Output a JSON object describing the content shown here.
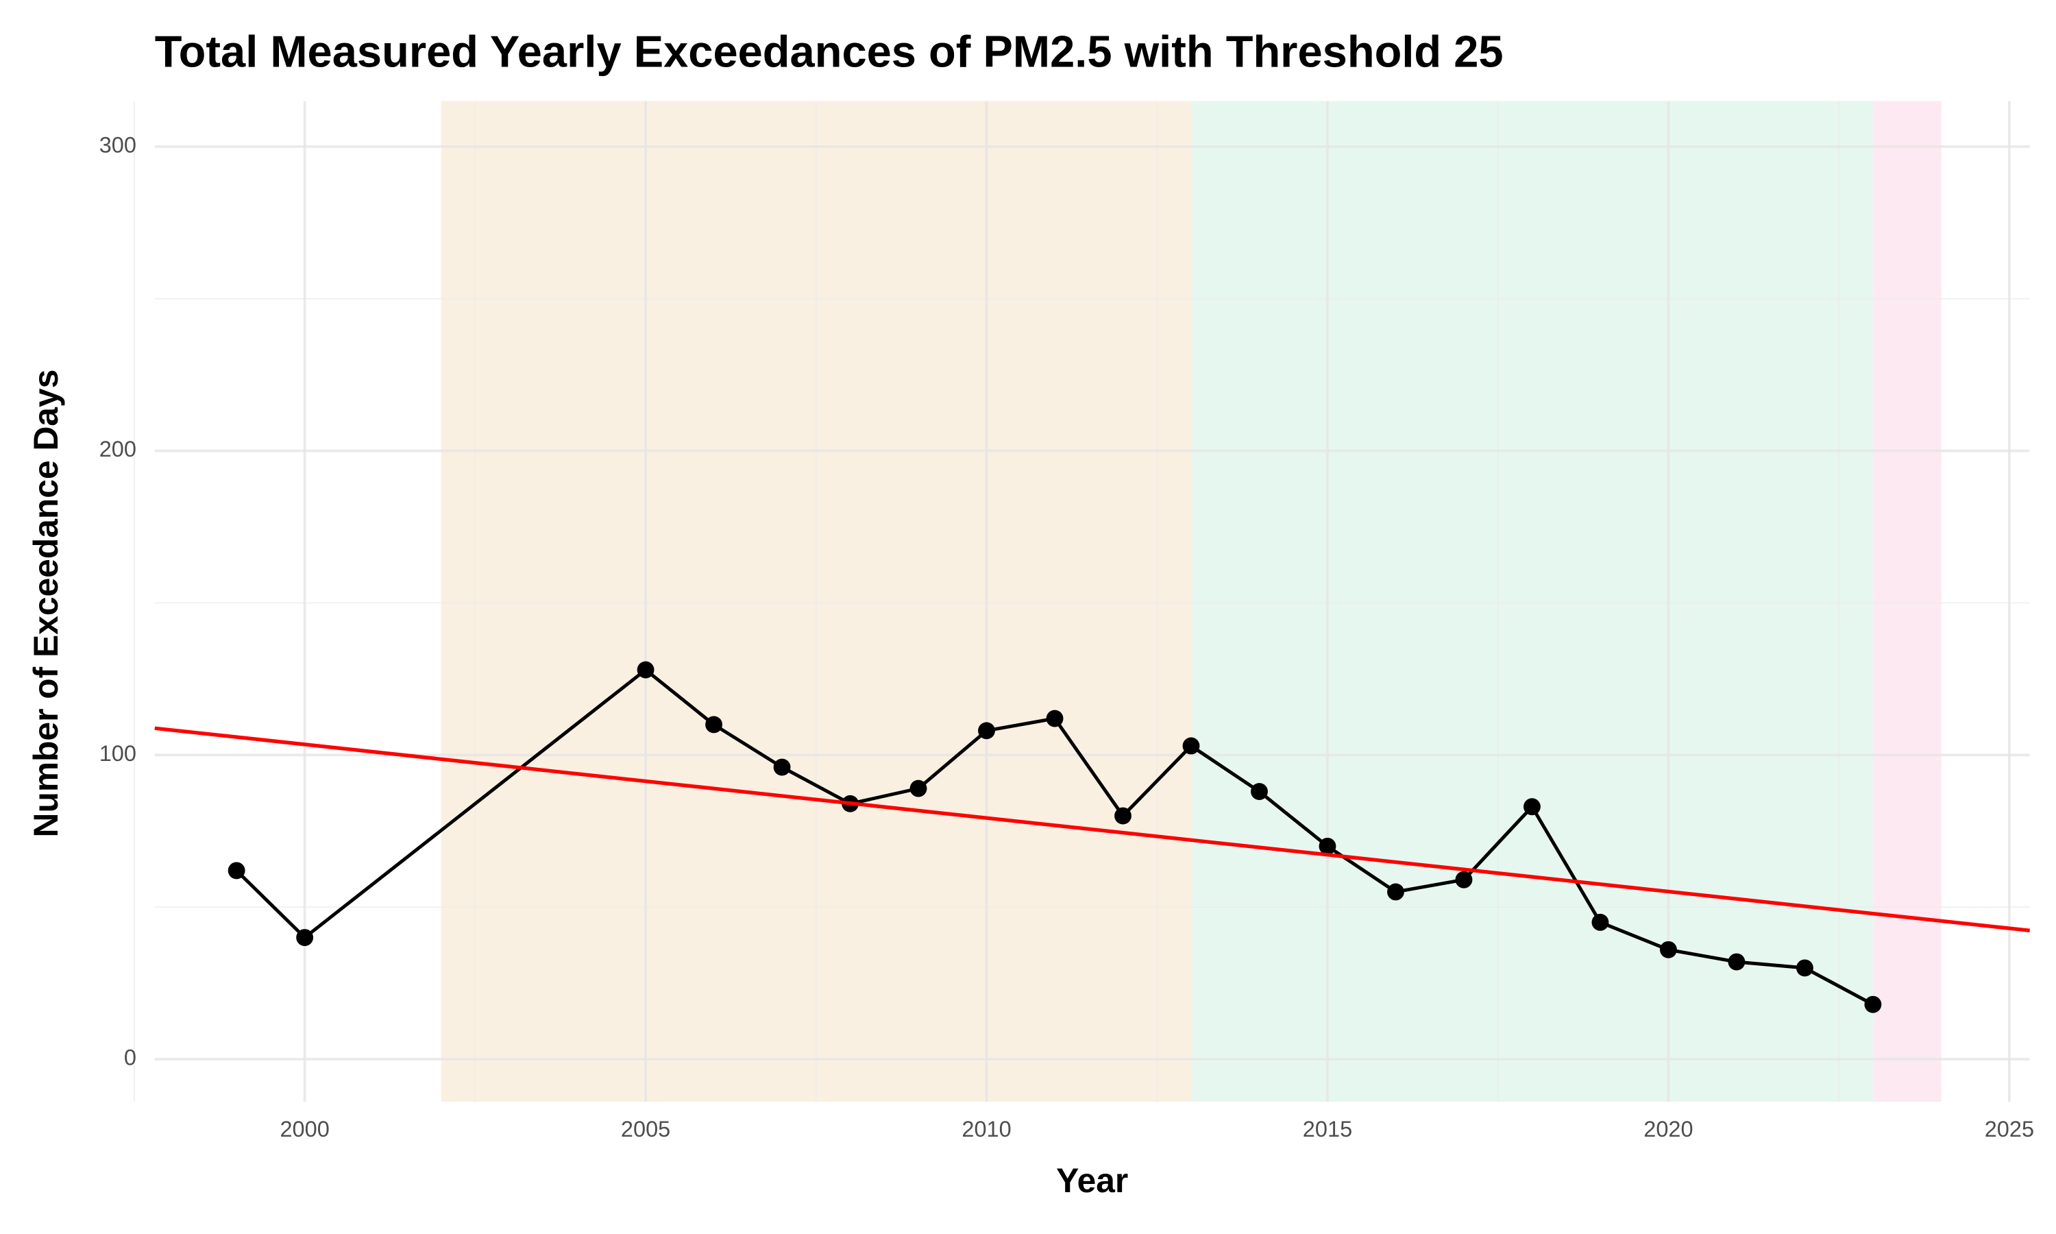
{
  "chart_data": {
    "type": "line",
    "title": "Total Measured Yearly Exceedances of PM2.5 with Threshold 25",
    "x_label": "Year",
    "y_label": "Number of Exceedance Days",
    "x": [
      1999,
      2000,
      2005,
      2006,
      2007,
      2008,
      2009,
      2010,
      2011,
      2012,
      2013,
      2014,
      2015,
      2016,
      2017,
      2018,
      2019,
      2020,
      2021,
      2022,
      2023
    ],
    "series": [
      {
        "color": "#000000",
        "values": [
          62,
          40,
          128,
          110,
          96,
          84,
          89,
          108,
          112,
          80,
          103,
          88,
          70,
          55,
          59,
          83,
          45,
          36,
          32,
          30,
          18
        ]
      }
    ],
    "trend": {
      "color": "#ff0000",
      "x": [
        1997.8,
        2025.3
      ],
      "values": [
        108.8,
        42.3
      ]
    },
    "shaded_regions": [
      {
        "start": 2002,
        "end": 2013,
        "color": "#faf0e1"
      },
      {
        "start": 2013,
        "end": 2023,
        "color": "#e6f7f0"
      },
      {
        "start": 2023,
        "end": 2024,
        "color": "#fde9f1"
      }
    ],
    "xlim": [
      1997.8,
      2025.3
    ],
    "ylim": [
      -14,
      315
    ],
    "xticks": [
      2000,
      2005,
      2010,
      2015,
      2020,
      2025
    ],
    "yticks": [
      0,
      100,
      200,
      300
    ],
    "xminorticks": [
      1997.5,
      2002.5,
      2007.5,
      2012.5,
      2017.5,
      2022.5
    ],
    "yminorticks": [
      50,
      150,
      250
    ],
    "grid": true
  }
}
